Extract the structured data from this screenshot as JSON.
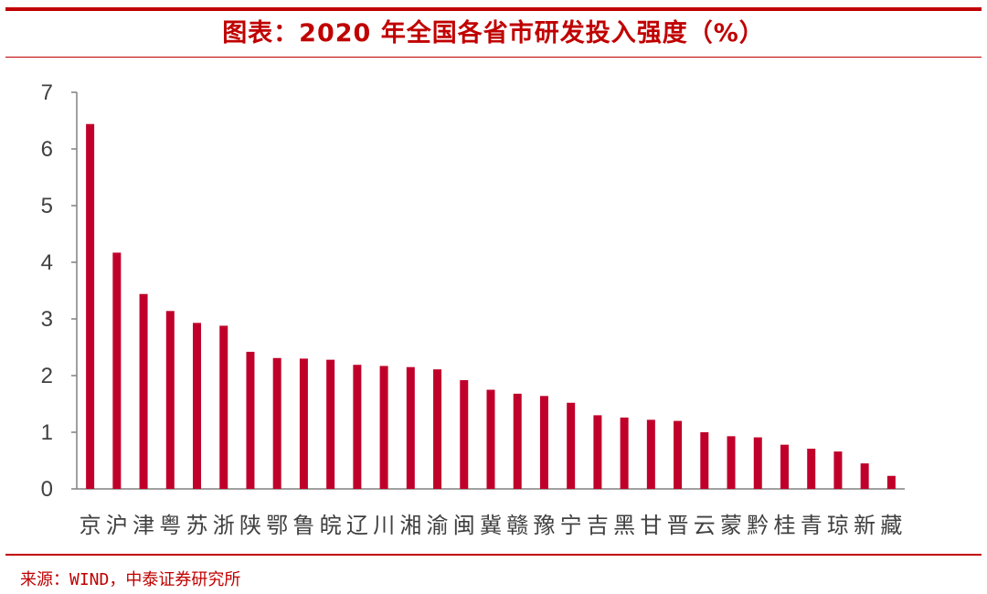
{
  "title": "图表：2020 年全国各省市研发投入强度（%）",
  "source": "来源：WIND，中泰证券研究所",
  "colors": {
    "accent": "#c00000",
    "bar": "#c0002a",
    "axis": "#808080",
    "text": "#404040"
  },
  "chart_data": {
    "type": "bar",
    "title": "图表：2020 年全国各省市研发投入强度（%）",
    "xlabel": "",
    "ylabel": "",
    "ylim": [
      0,
      7
    ],
    "yticks": [
      0,
      1,
      2,
      3,
      4,
      5,
      6,
      7
    ],
    "grid": false,
    "categories": [
      "京",
      "沪",
      "津",
      "粤",
      "苏",
      "浙",
      "陕",
      "鄂",
      "鲁",
      "皖",
      "辽",
      "川",
      "湘",
      "渝",
      "闽",
      "冀",
      "赣",
      "豫",
      "宁",
      "吉",
      "黑",
      "甘",
      "晋",
      "云",
      "蒙",
      "黔",
      "桂",
      "青",
      "琼",
      "新",
      "藏"
    ],
    "values": [
      6.44,
      4.17,
      3.44,
      3.14,
      2.93,
      2.88,
      2.42,
      2.31,
      2.3,
      2.28,
      2.19,
      2.17,
      2.15,
      2.11,
      1.92,
      1.75,
      1.68,
      1.64,
      1.52,
      1.3,
      1.26,
      1.22,
      1.2,
      1.0,
      0.93,
      0.91,
      0.78,
      0.71,
      0.66,
      0.45,
      0.23
    ]
  }
}
